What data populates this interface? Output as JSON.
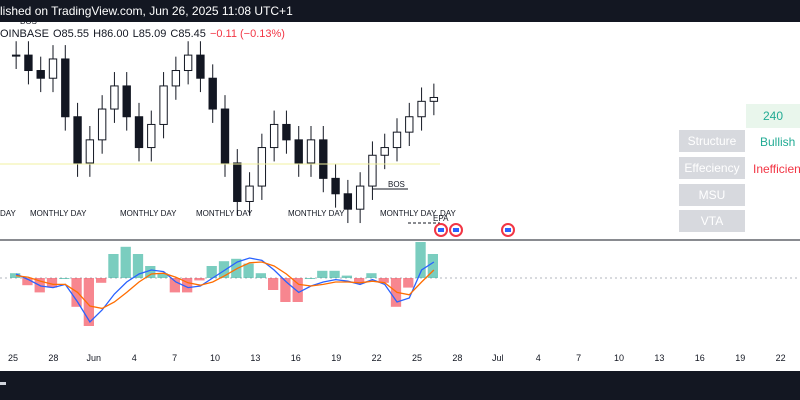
{
  "header": {
    "published_text": "lished on TradingView.com, Jun 26, 2025 11:08 UTC+1"
  },
  "ohlc": {
    "exchange": "OINBASE",
    "o": "O85.55",
    "h": "H86.00",
    "l": "L85.09",
    "c": "C85.45",
    "change": "−0.11 (−0.13%)"
  },
  "colors": {
    "up": "#22ab94",
    "down": "#f23645",
    "candle": "#131722",
    "macd_line": "#2962ff",
    "signal_line": "#ff6d00",
    "bg_dark": "#131722",
    "panel_bg": "#d7d9de",
    "bullish": "#22ab94",
    "inefficient": "#f23645"
  },
  "annotations": {
    "bos_top": "BOS",
    "bos_mid": "BOS",
    "epa": "EPA",
    "day_labels": [
      "DAY",
      "MONTHLY DAY",
      "MONTHLY DAY",
      "MONTHLY DAY",
      "MONTHLY DAY",
      "MONTHLY DAY",
      "DAY"
    ]
  },
  "panel": {
    "timeframe": "240",
    "rows": [
      {
        "label": "Structure",
        "value": "Bullish",
        "value_color": "#22ab94"
      },
      {
        "label": "Effeciency",
        "value": "Inefficient",
        "value_color": "#f23645"
      },
      {
        "label": "MSU",
        "value": ""
      },
      {
        "label": "VTA",
        "value": ""
      }
    ]
  },
  "chart_data": {
    "type": "line",
    "title": "",
    "x_tick_labels": [
      "25",
      "28",
      "Jun",
      "4",
      "7",
      "10",
      "13",
      "16",
      "19",
      "22",
      "25",
      "28",
      "Jul",
      "4",
      "7",
      "10",
      "13",
      "16",
      "19",
      "22"
    ],
    "price_series": {
      "name": "",
      "close": [
        86.0,
        85.8,
        85.7,
        85.95,
        85.2,
        84.6,
        84.9,
        85.3,
        85.6,
        85.2,
        84.8,
        85.1,
        85.6,
        85.8,
        86.0,
        85.7,
        85.3,
        84.6,
        84.1,
        84.3,
        84.8,
        85.1,
        84.9,
        84.6,
        84.9,
        84.4,
        84.2,
        84.0,
        84.3,
        84.7,
        84.8,
        85.0,
        85.2,
        85.4,
        85.45
      ],
      "min": 83.6,
      "max": 86.3
    },
    "macd": {
      "macd_line": [
        0.05,
        -0.02,
        -0.1,
        -0.12,
        -0.08,
        -0.3,
        -0.55,
        -0.4,
        -0.2,
        -0.05,
        0.05,
        0.1,
        0.08,
        -0.05,
        -0.12,
        -0.1,
        0.0,
        0.1,
        0.2,
        0.25,
        0.22,
        0.1,
        -0.05,
        -0.18,
        -0.1,
        -0.05,
        -0.02,
        -0.04,
        -0.08,
        -0.02,
        -0.08,
        -0.3,
        -0.25,
        0.1,
        0.2
      ],
      "signal_line": [
        0.03,
        0.01,
        -0.04,
        -0.08,
        -0.08,
        -0.18,
        -0.35,
        -0.38,
        -0.3,
        -0.18,
        -0.05,
        0.05,
        0.06,
        0.01,
        -0.06,
        -0.09,
        -0.05,
        0.03,
        0.12,
        0.19,
        0.2,
        0.15,
        0.05,
        -0.08,
        -0.1,
        -0.08,
        -0.05,
        -0.05,
        -0.06,
        -0.04,
        -0.06,
        -0.18,
        -0.21,
        -0.05,
        0.1
      ]
    }
  }
}
